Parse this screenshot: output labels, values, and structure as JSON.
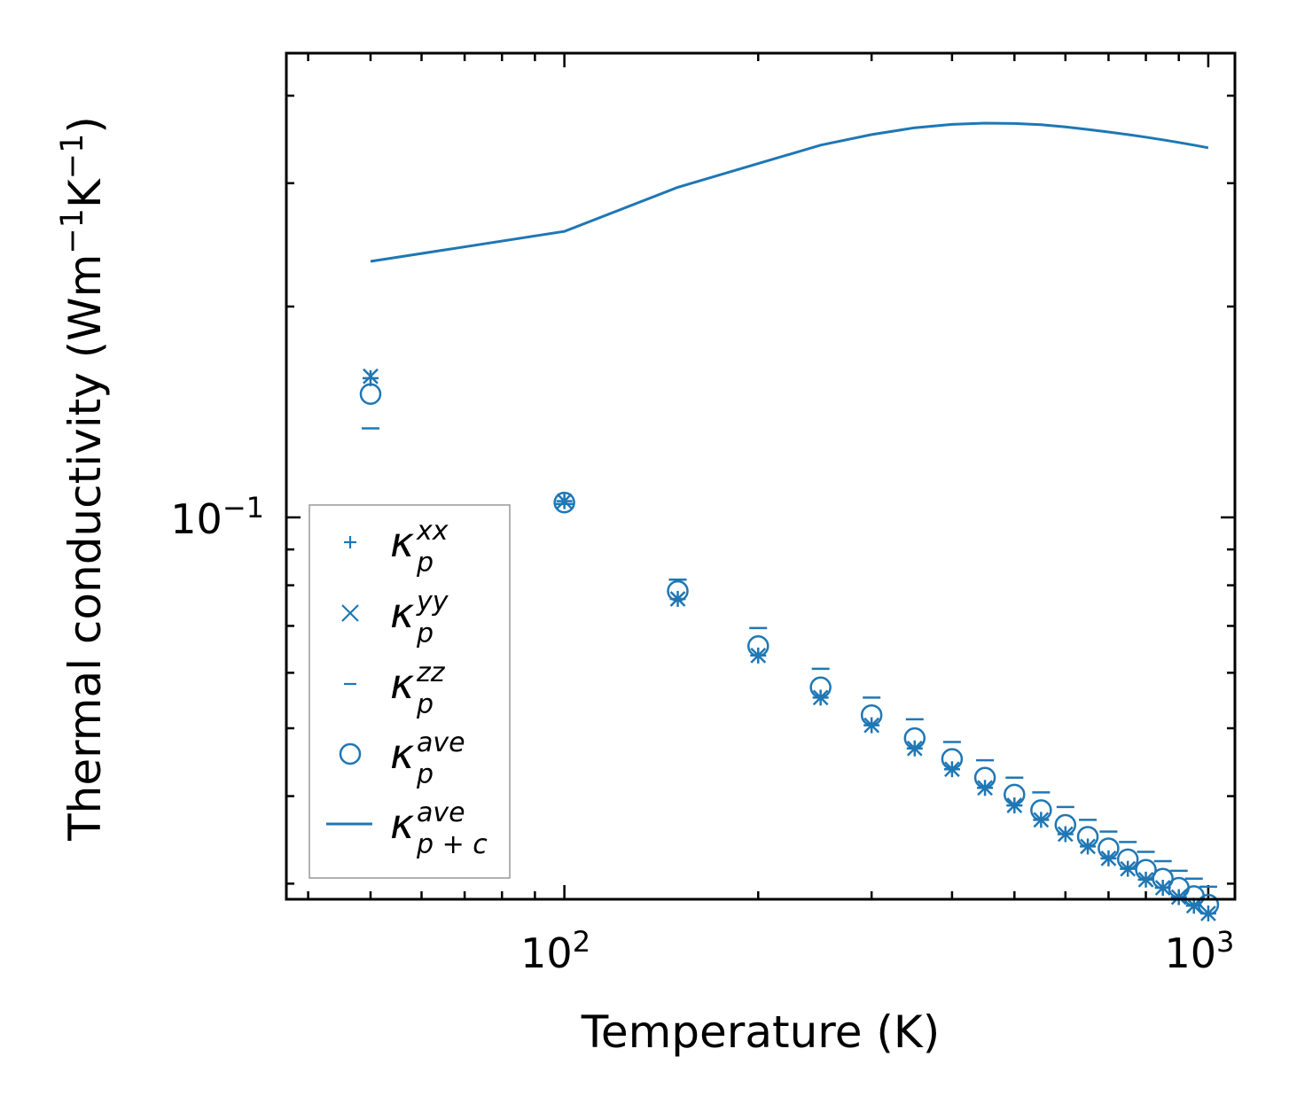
{
  "chart_data": {
    "type": "scatter",
    "xlabel": "Temperature (K)",
    "ylabel_main": "Thermal conductivity (Wm",
    "ylabel_sup1": "−1",
    "ylabel_mid": "K",
    "ylabel_sup2": "−1",
    "ylabel_end": ")",
    "xscale": "log",
    "yscale": "log",
    "xlim": [
      37,
      1100
    ],
    "ylim": [
      0.0285,
      0.46
    ],
    "x_ticks": [
      {
        "base": "10",
        "exp": "2",
        "value": 100
      },
      {
        "base": "10",
        "exp": "3",
        "value": 1000
      }
    ],
    "y_ticks": [
      {
        "base": "10",
        "exp": "−1",
        "value": 0.1
      }
    ],
    "x": [
      50,
      100,
      150,
      200,
      250,
      300,
      350,
      400,
      450,
      500,
      550,
      600,
      650,
      700,
      750,
      800,
      850,
      900,
      950,
      1000
    ],
    "series": [
      {
        "name": "kappa_p_xx",
        "marker": "plus",
        "values": [
          0.158,
          0.1055,
          0.0765,
          0.0635,
          0.0553,
          0.0505,
          0.0468,
          0.0437,
          0.0411,
          0.0388,
          0.037,
          0.0353,
          0.0339,
          0.0326,
          0.0315,
          0.0304,
          0.0296,
          0.0287,
          0.0279,
          0.0272
        ]
      },
      {
        "name": "kappa_p_yy",
        "marker": "x",
        "values": [
          0.159,
          0.1055,
          0.0765,
          0.0635,
          0.0553,
          0.0505,
          0.0468,
          0.0437,
          0.0411,
          0.0388,
          0.037,
          0.0353,
          0.0339,
          0.0326,
          0.0315,
          0.0304,
          0.0296,
          0.0287,
          0.0279,
          0.0272
        ]
      },
      {
        "name": "kappa_p_zz",
        "marker": "hline",
        "values": [
          0.134,
          0.1045,
          0.0815,
          0.0695,
          0.0608,
          0.0553,
          0.0515,
          0.0478,
          0.045,
          0.0425,
          0.0405,
          0.0386,
          0.037,
          0.0356,
          0.0344,
          0.0333,
          0.0323,
          0.0313,
          0.0305,
          0.0297
        ]
      },
      {
        "name": "kappa_p_ave",
        "marker": "circle",
        "values": [
          0.15,
          0.105,
          0.0785,
          0.0655,
          0.0572,
          0.0522,
          0.0484,
          0.0452,
          0.0425,
          0.0402,
          0.0382,
          0.0364,
          0.035,
          0.0337,
          0.0325,
          0.0314,
          0.0305,
          0.0296,
          0.0288,
          0.028
        ]
      },
      {
        "name": "kappa_pc_ave",
        "marker": "line",
        "values": [
          0.232,
          0.256,
          0.296,
          0.32,
          0.34,
          0.352,
          0.36,
          0.364,
          0.3655,
          0.365,
          0.3635,
          0.361,
          0.358,
          0.355,
          0.352,
          0.349,
          0.346,
          0.343,
          0.34,
          0.337
        ]
      }
    ],
    "legend_position": "lower-left",
    "legend": [
      {
        "marker": "plus",
        "sym": "κ",
        "sub": "p",
        "sup": "xx"
      },
      {
        "marker": "x",
        "sym": "κ",
        "sub": "p",
        "sup": "yy"
      },
      {
        "marker": "hline",
        "sym": "κ",
        "sub": "p",
        "sup": "zz"
      },
      {
        "marker": "circle",
        "sym": "κ",
        "sub": "p",
        "sup": "ave"
      },
      {
        "marker": "line",
        "sym": "κ",
        "sub": "p + c",
        "sup": "ave"
      }
    ],
    "color": "#1f77b4",
    "grid": false
  }
}
